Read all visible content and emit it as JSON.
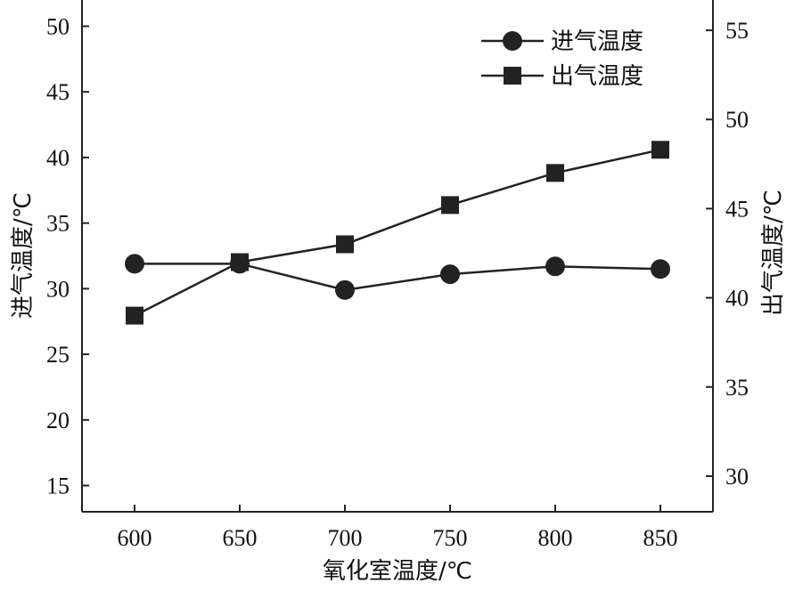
{
  "chart_data": {
    "type": "line",
    "xlabel": "氧化室温度/℃",
    "ylabel_left": "进气温度/℃",
    "ylabel_right": "出气温度/℃",
    "x": [
      600,
      650,
      700,
      750,
      800,
      850
    ],
    "x_ticks": [
      "600",
      "650",
      "700",
      "750",
      "800",
      "850"
    ],
    "xlim": [
      575,
      875
    ],
    "ylim_left": [
      13,
      52
    ],
    "ylim_right": [
      28,
      56.7
    ],
    "y_ticks_left": [
      "15",
      "20",
      "25",
      "30",
      "35",
      "40",
      "45",
      "50"
    ],
    "y_ticks_right": [
      "30",
      "35",
      "40",
      "45",
      "50",
      "55"
    ],
    "series": [
      {
        "name": "进气温度",
        "axis": "left",
        "marker": "circle",
        "values": [
          31.9,
          31.9,
          29.9,
          31.1,
          31.7,
          31.5
        ]
      },
      {
        "name": "出气温度",
        "axis": "right",
        "marker": "square",
        "values": [
          39.0,
          42.0,
          43.0,
          45.2,
          47.0,
          48.3
        ]
      }
    ],
    "legend_position": "top-right",
    "grid": false
  }
}
